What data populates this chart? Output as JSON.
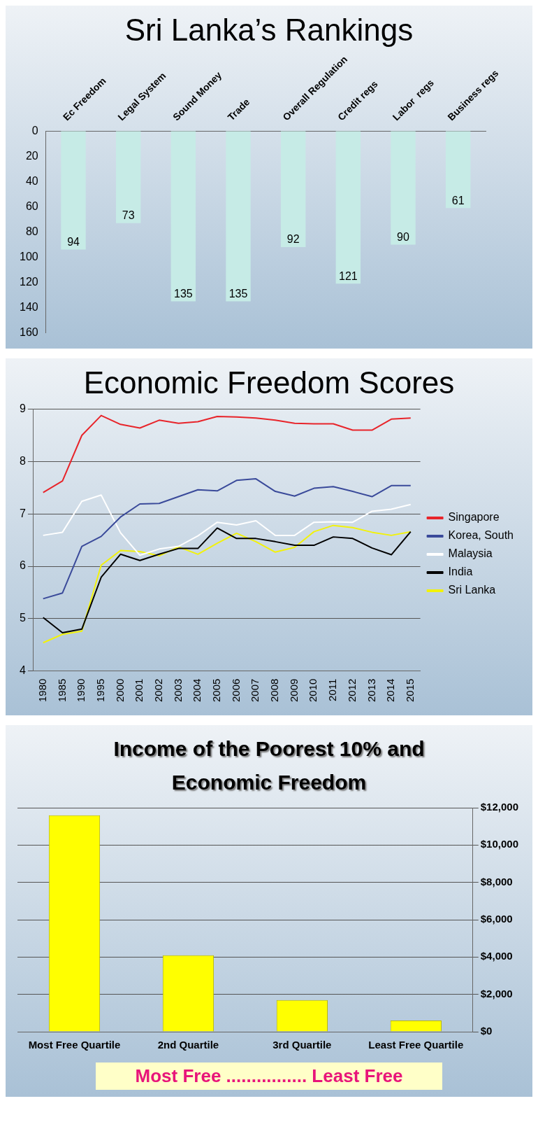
{
  "chart_data": [
    {
      "type": "bar",
      "title": "Sri Lanka’s Rankings",
      "categories": [
        "Ec Freedom",
        "Legal System",
        "Sound Money",
        "Trade",
        "Overall Regulation",
        "Credit regs",
        "Labor  regs",
        "Business regs"
      ],
      "values": [
        94,
        73,
        135,
        135,
        92,
        121,
        90,
        61
      ],
      "color": "#c6ebe6",
      "ylim": [
        160,
        0
      ],
      "yticks": [
        0,
        20,
        40,
        60,
        80,
        100,
        120,
        140,
        160
      ],
      "data_labels": true,
      "grid": false,
      "legend": false
    },
    {
      "type": "line",
      "title": "Economic Freedom Scores",
      "categories": [
        "1980",
        "1985",
        "1990",
        "1995",
        "2000",
        "2001",
        "2002",
        "2003",
        "2004",
        "2005",
        "2006",
        "2007",
        "2008",
        "2009",
        "2010",
        "2011",
        "2012",
        "2013",
        "2014",
        "2015"
      ],
      "series": [
        {
          "name": "Singapore",
          "color": "#e8242a",
          "values": [
            7.41,
            7.63,
            8.5,
            8.88,
            8.71,
            8.64,
            8.79,
            8.73,
            8.76,
            8.86,
            8.85,
            8.83,
            8.79,
            8.73,
            8.72,
            8.72,
            8.6,
            8.6,
            8.81,
            8.83
          ]
        },
        {
          "name": "Korea, South",
          "color": "#3a4a9a",
          "values": [
            5.38,
            5.49,
            6.38,
            6.57,
            6.94,
            7.19,
            7.2,
            7.33,
            7.46,
            7.44,
            7.64,
            7.67,
            7.43,
            7.34,
            7.49,
            7.52,
            7.43,
            7.33,
            7.54,
            7.54
          ]
        },
        {
          "name": "Malaysia",
          "color": "#ffffff",
          "values": [
            6.59,
            6.65,
            7.24,
            7.36,
            6.64,
            6.21,
            6.33,
            6.38,
            6.58,
            6.84,
            6.79,
            6.87,
            6.59,
            6.59,
            6.84,
            6.85,
            6.84,
            7.05,
            7.09,
            7.18
          ]
        },
        {
          "name": "India",
          "color": "#000000",
          "values": [
            5.02,
            4.73,
            4.8,
            5.79,
            6.23,
            6.11,
            6.23,
            6.34,
            6.34,
            6.73,
            6.53,
            6.53,
            6.47,
            6.4,
            6.4,
            6.56,
            6.53,
            6.35,
            6.22,
            6.66
          ]
        },
        {
          "name": "Sri Lanka",
          "color": "#f2f20a",
          "values": [
            4.54,
            4.7,
            4.76,
            6.02,
            6.3,
            6.28,
            6.2,
            6.37,
            6.23,
            6.44,
            6.63,
            6.47,
            6.27,
            6.36,
            6.66,
            6.78,
            6.74,
            6.65,
            6.59,
            6.66
          ]
        }
      ],
      "ylim": [
        4,
        9
      ],
      "yticks": [
        4,
        5,
        6,
        7,
        8,
        9
      ],
      "grid": "y",
      "legend": "right",
      "marker": "none"
    },
    {
      "type": "bar",
      "title": "Income of the Poorest 10% and Economic Freedom",
      "categories": [
        "Most Free Quartile",
        "2nd Quartile",
        "3rd Quartile",
        "Least Free Quartile"
      ],
      "series": [
        {
          "color": "#ffff00",
          "axis": "y2",
          "values": [
            11600,
            4100,
            1700,
            600
          ]
        }
      ],
      "y2lim": [
        0,
        12000
      ],
      "y2ticks": [
        {
          "value": 0,
          "label": "$0"
        },
        {
          "value": 2000,
          "label": "$2,000"
        },
        {
          "value": 4000,
          "label": "$4,000"
        },
        {
          "value": 6000,
          "label": "$6,000"
        },
        {
          "value": 8000,
          "label": "$8,000"
        },
        {
          "value": 10000,
          "label": "$10,000"
        },
        {
          "value": 12000,
          "label": "$12,000"
        }
      ],
      "grid": "y",
      "legend": false,
      "annotations": [
        "Most Free ................ Least Free"
      ]
    }
  ]
}
